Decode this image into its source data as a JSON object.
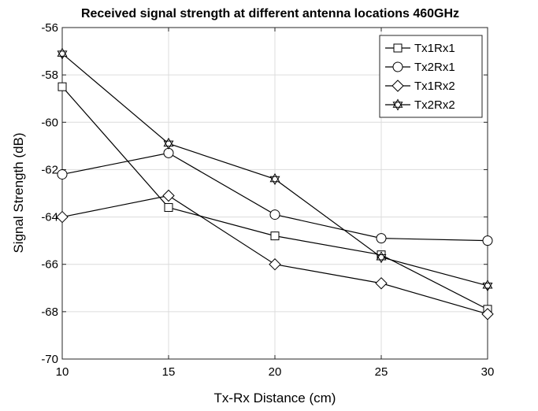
{
  "chart_data": {
    "type": "line",
    "title": "Received signal strength at different antenna locations 460GHz",
    "xlabel": "Tx-Rx Distance (cm)",
    "ylabel": "Signal Strength (dB)",
    "x": [
      10,
      15,
      20,
      25,
      30
    ],
    "xlim": [
      10,
      30
    ],
    "ylim": [
      -70,
      -56
    ],
    "xticks": [
      "10",
      "15",
      "20",
      "25",
      "30"
    ],
    "yticks": [
      "-70",
      "-68",
      "-66",
      "-64",
      "-62",
      "-60",
      "-58",
      "-56"
    ],
    "grid": true,
    "legend_position": "top-right",
    "series": [
      {
        "name": "Tx1Rx1",
        "marker": "square",
        "values": [
          -58.5,
          -63.6,
          -64.8,
          -65.6,
          -67.9
        ]
      },
      {
        "name": "Tx2Rx1",
        "marker": "circle",
        "values": [
          -62.2,
          -61.3,
          -63.9,
          -64.9,
          -65.0
        ]
      },
      {
        "name": "Tx1Rx2",
        "marker": "diamond",
        "values": [
          -64.0,
          -63.1,
          -66.0,
          -66.8,
          -68.1
        ]
      },
      {
        "name": "Tx2Rx2",
        "marker": "hexagram",
        "values": [
          -57.1,
          -60.9,
          -62.4,
          -65.7,
          -66.9
        ]
      }
    ]
  }
}
